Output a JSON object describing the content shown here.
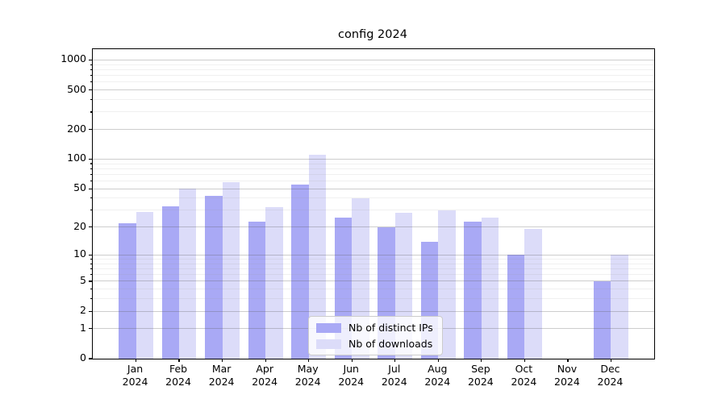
{
  "title": "config 2024",
  "colors": {
    "ips_bar": "#a9a9f5",
    "downloads_bar": "#dcdcf9",
    "grid_major": "#c8c8c8",
    "grid_minor": "#ebebeb",
    "axis": "#000000"
  },
  "legend": {
    "items": [
      {
        "label": "Nb of distinct IPs",
        "series": "ips"
      },
      {
        "label": "Nb of downloads",
        "series": "downloads"
      }
    ]
  },
  "y_axis": {
    "major_ticks": [
      0,
      1,
      2,
      5,
      10,
      20,
      50,
      100,
      200,
      500,
      1000
    ],
    "minor_ticks": [
      3,
      4,
      6,
      7,
      8,
      9,
      30,
      40,
      60,
      70,
      80,
      90,
      300,
      400,
      600,
      700,
      800,
      900
    ]
  },
  "x_axis": {
    "categories": [
      {
        "month": "Jan",
        "year": "2024"
      },
      {
        "month": "Feb",
        "year": "2024"
      },
      {
        "month": "Mar",
        "year": "2024"
      },
      {
        "month": "Apr",
        "year": "2024"
      },
      {
        "month": "May",
        "year": "2024"
      },
      {
        "month": "Jun",
        "year": "2024"
      },
      {
        "month": "Jul",
        "year": "2024"
      },
      {
        "month": "Aug",
        "year": "2024"
      },
      {
        "month": "Sep",
        "year": "2024"
      },
      {
        "month": "Oct",
        "year": "2024"
      },
      {
        "month": "Nov",
        "year": "2024"
      },
      {
        "month": "Dec",
        "year": "2024"
      }
    ]
  },
  "chart_data": {
    "type": "bar",
    "title": "config 2024",
    "scale_y": "log1p",
    "categories": [
      "Jan 2024",
      "Feb 2024",
      "Mar 2024",
      "Apr 2024",
      "May 2024",
      "Jun 2024",
      "Jul 2024",
      "Aug 2024",
      "Sep 2024",
      "Oct 2024",
      "Nov 2024",
      "Dec 2024"
    ],
    "series": [
      {
        "name": "Nb of distinct IPs",
        "values": [
          22,
          33,
          42,
          23,
          55,
          25,
          20,
          14,
          23,
          10,
          0,
          5
        ]
      },
      {
        "name": "Nb of downloads",
        "values": [
          29,
          50,
          58,
          32,
          110,
          40,
          28,
          30,
          25,
          19,
          0,
          10
        ]
      }
    ],
    "yticks": [
      0,
      1,
      2,
      5,
      10,
      20,
      50,
      100,
      200,
      500,
      1000
    ],
    "ylim": [
      0,
      1285
    ],
    "grid": true,
    "legend_position": "lower center"
  }
}
